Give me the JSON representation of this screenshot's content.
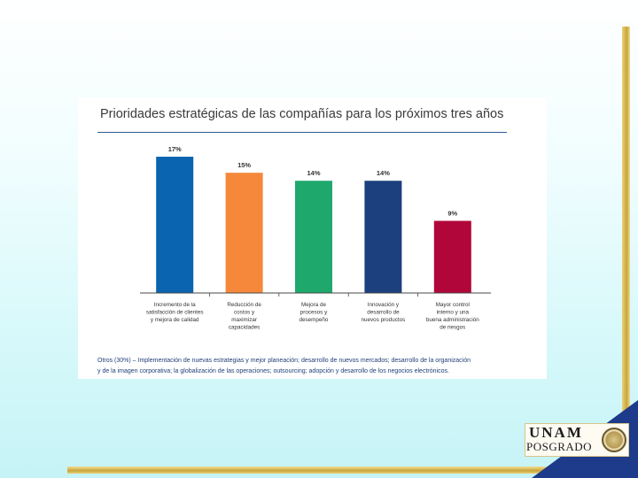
{
  "chart_data": {
    "type": "bar",
    "title": "Prioridades estratégicas de las compañías para los próximos tres años",
    "categories": [
      [
        "Incremento de la",
        "satisfacción de clientes",
        "y mejora de calidad"
      ],
      [
        "Reducción de",
        "costos y",
        "maximizar",
        "capacidades"
      ],
      [
        "Mejora de",
        "procesos y",
        "desempeño"
      ],
      [
        "Innovación y",
        "desarrollo de",
        "nuevos productos"
      ],
      [
        "Mayor control",
        "interno y una",
        "buena administración",
        "de riesgos"
      ]
    ],
    "values": [
      17,
      15,
      14,
      14,
      9
    ],
    "value_labels": [
      "17%",
      "15%",
      "14%",
      "14%",
      "9%"
    ],
    "colors": [
      "#0a64b0",
      "#f5883a",
      "#1ea86b",
      "#1c3f7e",
      "#b1063a"
    ],
    "ylim": [
      0,
      18
    ],
    "grid": false,
    "legend": "none",
    "note_lines": [
      "Otros (30%) – Implementación de nuevas estrategias y mejor planeación; desarrollo de nuevos mercados; desarrollo de la organización",
      "y de la imagen corporativa; la globalización de las operaciones; outsourcing; adopción y desarrollo de los negocios electrónicos."
    ]
  },
  "logo": {
    "line1": "UNAM",
    "line2": "POSGRADO"
  }
}
